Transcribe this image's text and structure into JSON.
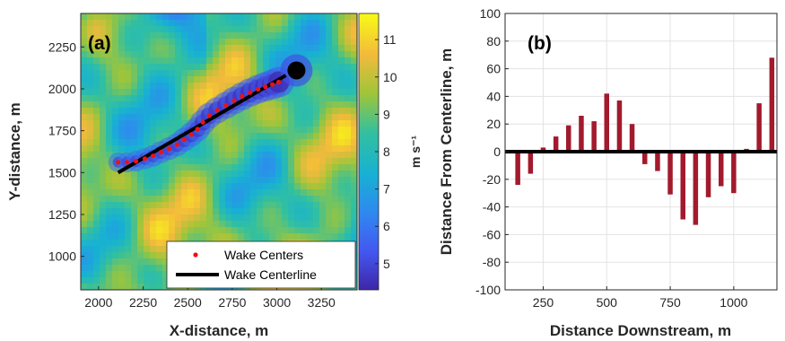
{
  "chart_data": [
    {
      "type": "heatmap",
      "panel_label": "(a)",
      "xlabel": "X-distance, m",
      "ylabel": "Y-distance, m",
      "xlim": [
        1900,
        3450
      ],
      "ylim": [
        800,
        2450
      ],
      "xticks": [
        2000,
        2250,
        2500,
        2750,
        3000,
        3250
      ],
      "yticks": [
        1000,
        1250,
        1500,
        1750,
        2000,
        2250
      ],
      "colorbar": {
        "label": "m s⁻¹",
        "range": [
          4.3,
          11.7
        ],
        "ticks": [
          5,
          6,
          7,
          8,
          9,
          10,
          11
        ]
      },
      "turbine": {
        "x": 3110,
        "y": 2110
      },
      "wake_centers": {
        "name": "Wake Centers",
        "color": "#ee1111",
        "x": [
          2110,
          2160,
          2210,
          2260,
          2305,
          2350,
          2395,
          2440,
          2480,
          2520,
          2555,
          2585,
          2620,
          2665,
          2715,
          2760,
          2805,
          2850,
          2895,
          2935,
          2975,
          3010
        ],
        "y": [
          1562,
          1562,
          1568,
          1583,
          1600,
          1622,
          1643,
          1667,
          1697,
          1728,
          1760,
          1800,
          1840,
          1872,
          1902,
          1930,
          1955,
          1978,
          1998,
          2013,
          2026,
          2040
        ]
      },
      "wake_centerline": {
        "name": "Wake Centerline",
        "color": "#000000",
        "x": [
          2110,
          3050
        ],
        "y": [
          1500,
          2080
        ]
      },
      "legend_position": "bottom-right"
    },
    {
      "type": "bar",
      "panel_label": "(b)",
      "xlabel": "Distance Downstream, m",
      "ylabel": "Distance From Centerline, m",
      "xlim": [
        100,
        1170
      ],
      "ylim": [
        -100,
        100
      ],
      "xticks": [
        250,
        500,
        750,
        1000
      ],
      "yticks": [
        -100,
        -80,
        -60,
        -40,
        -20,
        0,
        20,
        40,
        60,
        80,
        100
      ],
      "bar_color": "#a21a2d",
      "x": [
        150,
        200,
        250,
        300,
        350,
        400,
        450,
        500,
        550,
        600,
        650,
        700,
        750,
        800,
        850,
        900,
        950,
        1000,
        1050,
        1100,
        1150
      ],
      "values": [
        -24,
        -16,
        3,
        11,
        19,
        26,
        22,
        42,
        37,
        20,
        -9,
        -14,
        -31,
        -49,
        -53,
        -33,
        -25,
        -30,
        2,
        35,
        68
      ],
      "grid": true,
      "zero_line": true
    }
  ]
}
